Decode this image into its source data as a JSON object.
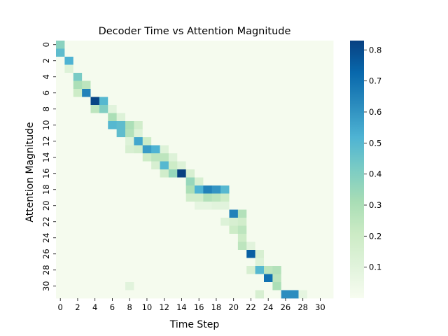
{
  "chart_data": {
    "type": "heatmap",
    "title": "Decoder Time vs Attention Magnitude",
    "xlabel": "Time Step",
    "ylabel": "Attention Magnitude",
    "x_tick_labels": [
      "0",
      "2",
      "4",
      "6",
      "8",
      "10",
      "12",
      "14",
      "16",
      "18",
      "20",
      "22",
      "24",
      "26",
      "28",
      "30"
    ],
    "y_tick_labels": [
      "0",
      "2",
      "4",
      "6",
      "8",
      "10",
      "12",
      "14",
      "16",
      "18",
      "20",
      "22",
      "24",
      "26",
      "28",
      "30"
    ],
    "colorbar": {
      "cmap": "GnBu",
      "range": [
        0.0,
        0.83
      ],
      "tick_values": [
        0.1,
        0.2,
        0.3,
        0.4,
        0.5,
        0.6,
        0.7,
        0.8
      ],
      "tick_labels": [
        "0.1",
        "0.2",
        "0.3",
        "0.4",
        "0.5",
        "0.6",
        "0.7",
        "0.8"
      ]
    },
    "n_rows": 32,
    "n_cols": 32,
    "background_value": 0.01,
    "cells": [
      [
        0,
        0,
        0.38
      ],
      [
        1,
        0,
        0.48
      ],
      [
        2,
        1,
        0.52
      ],
      [
        3,
        1,
        0.12
      ],
      [
        4,
        2,
        0.42
      ],
      [
        5,
        2,
        0.3
      ],
      [
        5,
        3,
        0.25
      ],
      [
        6,
        2,
        0.2
      ],
      [
        6,
        3,
        0.65
      ],
      [
        7,
        4,
        0.82
      ],
      [
        7,
        5,
        0.5
      ],
      [
        8,
        4,
        0.25
      ],
      [
        8,
        5,
        0.4
      ],
      [
        8,
        6,
        0.1
      ],
      [
        9,
        6,
        0.3
      ],
      [
        9,
        7,
        0.12
      ],
      [
        10,
        6,
        0.5
      ],
      [
        10,
        7,
        0.48
      ],
      [
        10,
        8,
        0.3
      ],
      [
        10,
        9,
        0.18
      ],
      [
        11,
        7,
        0.48
      ],
      [
        11,
        8,
        0.28
      ],
      [
        11,
        9,
        0.12
      ],
      [
        12,
        8,
        0.12
      ],
      [
        12,
        9,
        0.55
      ],
      [
        12,
        10,
        0.2
      ],
      [
        13,
        8,
        0.15
      ],
      [
        13,
        9,
        0.18
      ],
      [
        13,
        10,
        0.58
      ],
      [
        13,
        11,
        0.52
      ],
      [
        13,
        12,
        0.12
      ],
      [
        14,
        10,
        0.2
      ],
      [
        14,
        11,
        0.25
      ],
      [
        14,
        12,
        0.25
      ],
      [
        14,
        13,
        0.12
      ],
      [
        15,
        11,
        0.15
      ],
      [
        15,
        12,
        0.5
      ],
      [
        15,
        13,
        0.2
      ],
      [
        15,
        14,
        0.12
      ],
      [
        16,
        12,
        0.18
      ],
      [
        16,
        13,
        0.35
      ],
      [
        16,
        14,
        0.83
      ],
      [
        16,
        15,
        0.15
      ],
      [
        17,
        15,
        0.35
      ],
      [
        17,
        16,
        0.15
      ],
      [
        18,
        15,
        0.3
      ],
      [
        18,
        16,
        0.52
      ],
      [
        18,
        17,
        0.65
      ],
      [
        18,
        18,
        0.6
      ],
      [
        18,
        19,
        0.5
      ],
      [
        19,
        15,
        0.18
      ],
      [
        19,
        16,
        0.18
      ],
      [
        19,
        17,
        0.28
      ],
      [
        19,
        18,
        0.25
      ],
      [
        19,
        19,
        0.2
      ],
      [
        20,
        16,
        0.08
      ],
      [
        20,
        17,
        0.08
      ],
      [
        20,
        18,
        0.1
      ],
      [
        20,
        19,
        0.1
      ],
      [
        21,
        20,
        0.65
      ],
      [
        21,
        21,
        0.28
      ],
      [
        22,
        19,
        0.12
      ],
      [
        22,
        20,
        0.15
      ],
      [
        22,
        21,
        0.18
      ],
      [
        23,
        20,
        0.2
      ],
      [
        23,
        21,
        0.25
      ],
      [
        24,
        21,
        0.2
      ],
      [
        25,
        21,
        0.25
      ],
      [
        25,
        22,
        0.1
      ],
      [
        26,
        22,
        0.75
      ],
      [
        26,
        23,
        0.15
      ],
      [
        27,
        23,
        0.12
      ],
      [
        28,
        22,
        0.15
      ],
      [
        28,
        23,
        0.5
      ],
      [
        28,
        24,
        0.25
      ],
      [
        28,
        25,
        0.28
      ],
      [
        29,
        24,
        0.7
      ],
      [
        29,
        25,
        0.25
      ],
      [
        30,
        25,
        0.3
      ],
      [
        30,
        8,
        0.1
      ],
      [
        31,
        23,
        0.15
      ],
      [
        31,
        26,
        0.62
      ],
      [
        31,
        27,
        0.62
      ],
      [
        31,
        28,
        0.08
      ]
    ]
  }
}
